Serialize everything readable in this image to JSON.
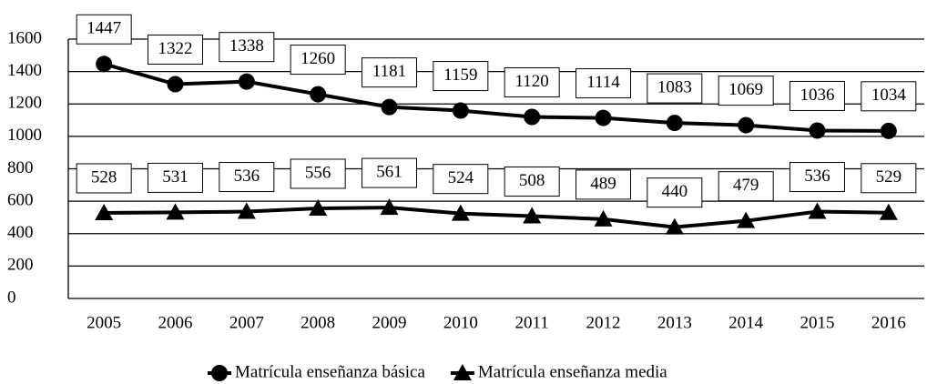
{
  "chart_data": {
    "type": "line",
    "categories": [
      "2005",
      "2006",
      "2007",
      "2008",
      "2009",
      "2010",
      "2011",
      "2012",
      "2013",
      "2014",
      "2015",
      "2016"
    ],
    "series": [
      {
        "name": "Matrícula enseñanza básica",
        "color": "#000000",
        "marker": "circle",
        "values": [
          1447,
          1322,
          1338,
          1260,
          1181,
          1159,
          1120,
          1114,
          1083,
          1069,
          1036,
          1034
        ]
      },
      {
        "name": "Matrícula enseñanza media",
        "color": "#000000",
        "marker": "triangle",
        "values": [
          528,
          531,
          536,
          556,
          561,
          524,
          508,
          489,
          440,
          479,
          536,
          529
        ]
      }
    ],
    "ylim": [
      0,
      1600
    ],
    "yticks": [
      0,
      200,
      400,
      600,
      800,
      1000,
      1200,
      1400,
      1600
    ],
    "grid": true,
    "legend": "bottom"
  }
}
